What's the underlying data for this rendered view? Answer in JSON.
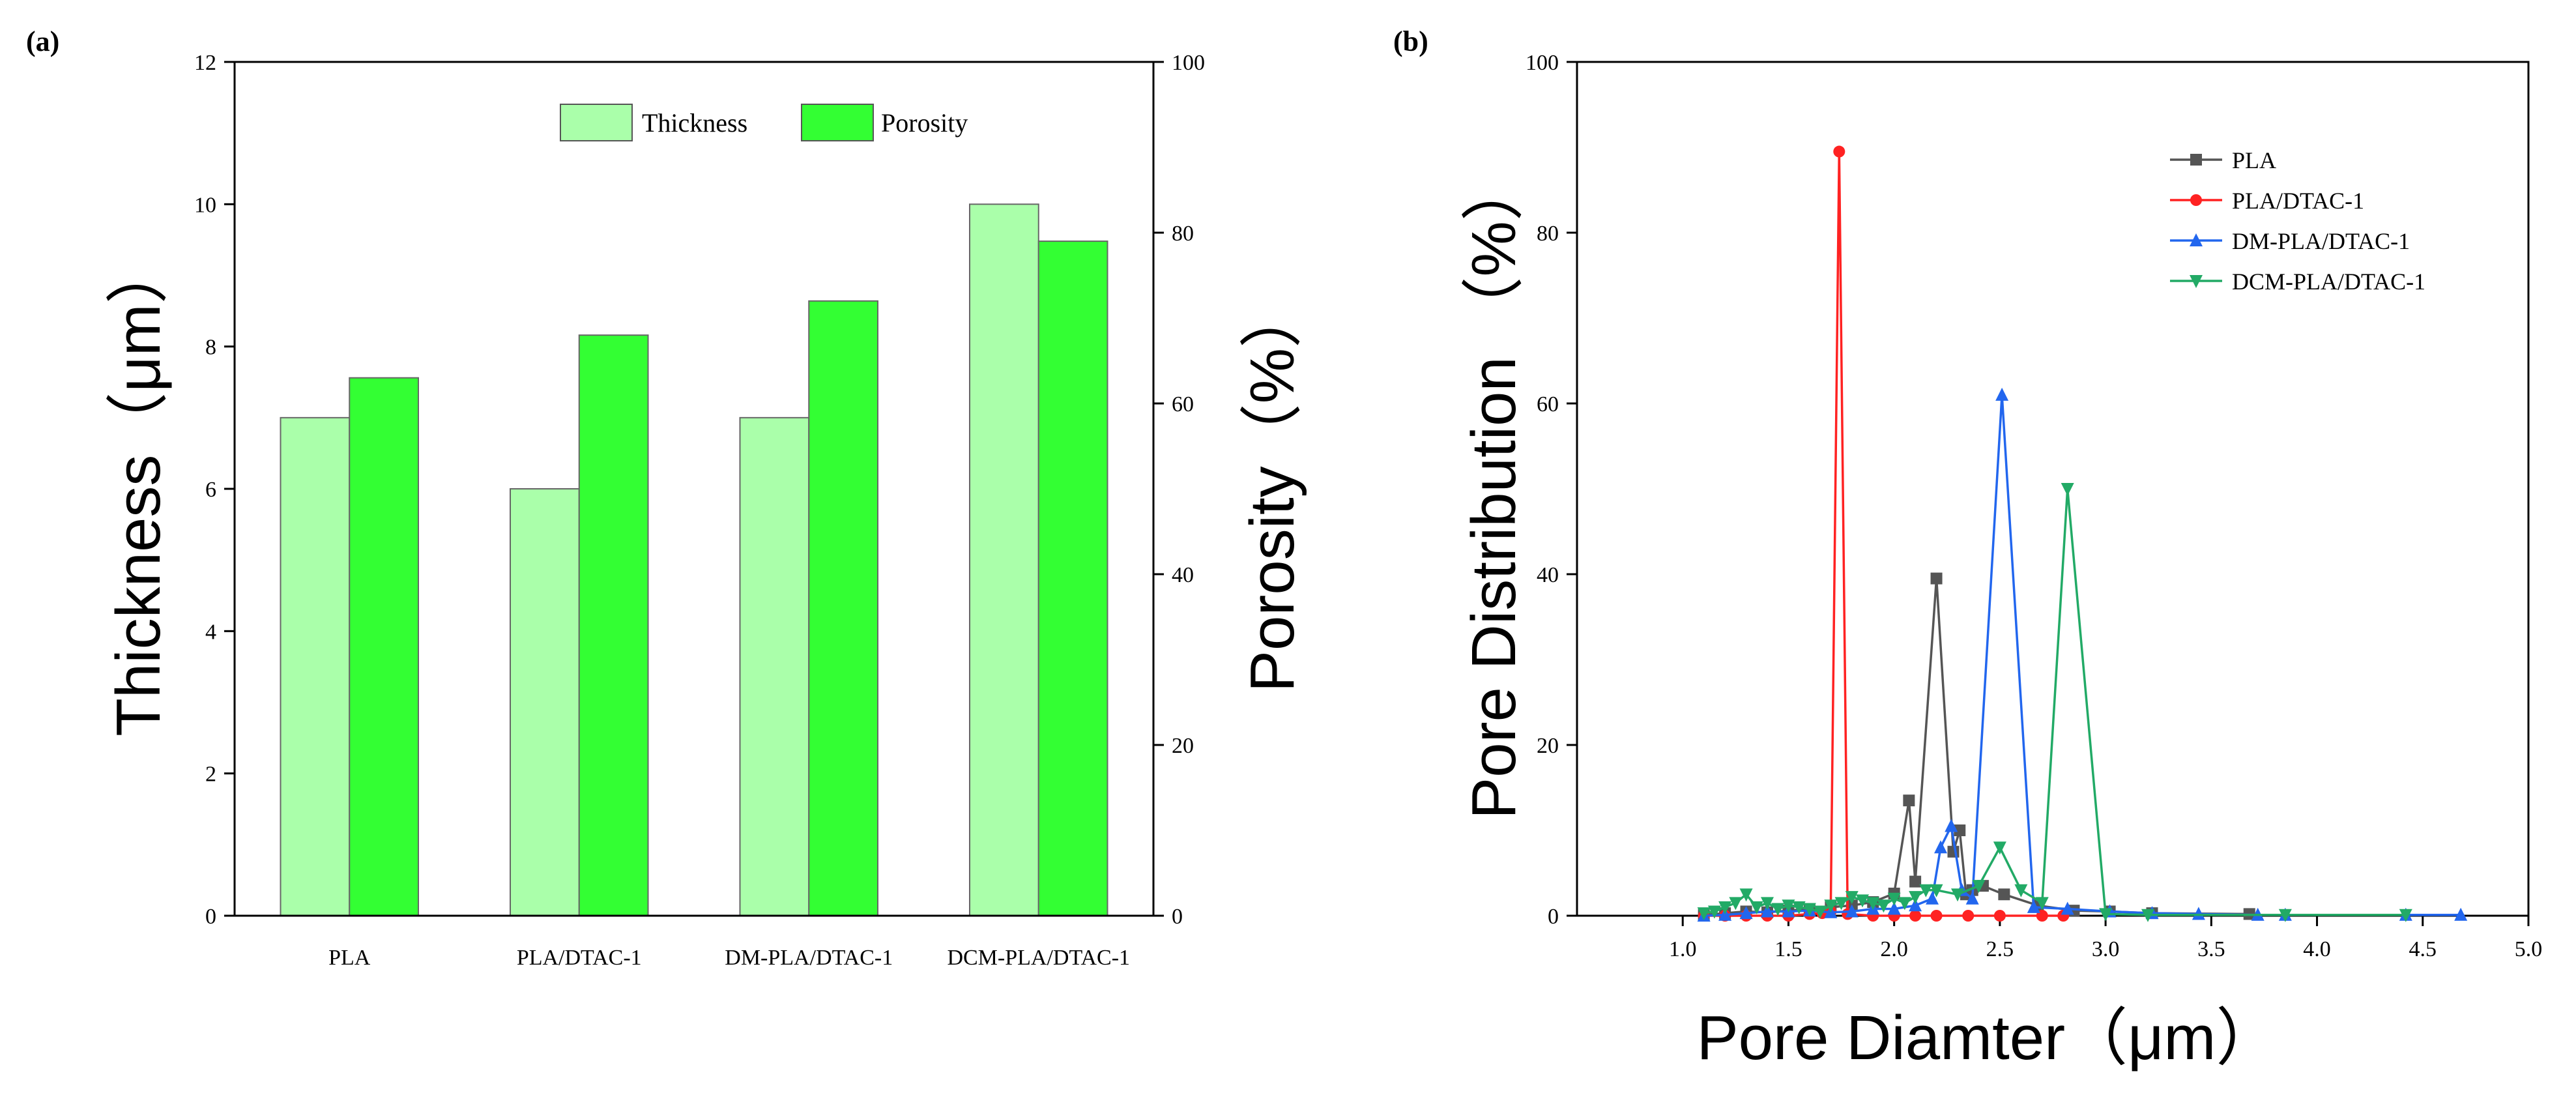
{
  "panel_a_label": "(a)",
  "panel_b_label": "(b)",
  "colors": {
    "thickness": "#aaffaa",
    "porosity": "#33ff33",
    "PLA": "#555555",
    "PLA/DTAC-1": "#ff2222",
    "DM-PLA/DTAC-1": "#2266ee",
    "DCM-PLA/DTAC-1": "#22aa66"
  },
  "chart_data": [
    {
      "type": "bar",
      "title": "(a)",
      "categories": [
        "PLA",
        "PLA/DTAC-1",
        "DM-PLA/DTAC-1",
        "DCM-PLA/DTAC-1"
      ],
      "series": [
        {
          "name": "Thickness",
          "axis": "left",
          "values": [
            7,
            6,
            7,
            10
          ]
        },
        {
          "name": "Porosity",
          "axis": "right",
          "values": [
            63,
            68,
            72,
            79
          ]
        }
      ],
      "ylabel": "Thickness（μm）",
      "ylabel_right": "Porosity（%）",
      "ylim": [
        0,
        12
      ],
      "ylim_right": [
        0,
        100
      ],
      "yticks": [
        "0",
        "2",
        "4",
        "6",
        "8",
        "10",
        "12"
      ],
      "yticks_right": [
        "0",
        "20",
        "40",
        "60",
        "80",
        "100"
      ],
      "legend": [
        "Thickness",
        "Porosity"
      ],
      "legend_position": "top-center"
    },
    {
      "type": "line",
      "title": "(b)",
      "xlabel": "Pore Diamter（μm）",
      "ylabel": "Pore Distribution （%）",
      "xlim": [
        0.5,
        5.0
      ],
      "ylim": [
        0,
        100
      ],
      "xticks": [
        "1.0",
        "1.5",
        "2.0",
        "2.5",
        "3.0",
        "3.5",
        "4.0",
        "4.5",
        "5.0"
      ],
      "yticks": [
        "0",
        "20",
        "40",
        "60",
        "80",
        "100"
      ],
      "legend_position": "top-right",
      "series": [
        {
          "name": "PLA",
          "marker": "square",
          "x": [
            1.1,
            1.2,
            1.3,
            1.4,
            1.5,
            1.6,
            1.7,
            1.8,
            1.9,
            2.0,
            2.07,
            2.1,
            2.2,
            2.28,
            2.31,
            2.34,
            2.37,
            2.42,
            2.52,
            2.68,
            2.85,
            3.02,
            3.22,
            3.68
          ],
          "y": [
            0.1,
            0.3,
            0.5,
            0.4,
            0.6,
            0.8,
            1.0,
            1.2,
            1.6,
            2.6,
            13.5,
            4.0,
            39.5,
            7.5,
            10.0,
            2.5,
            3.0,
            3.5,
            2.5,
            1.2,
            0.6,
            0.5,
            0.3,
            0.2
          ]
        },
        {
          "name": "PLA/DTAC-1",
          "marker": "circle",
          "x": [
            1.1,
            1.2,
            1.3,
            1.4,
            1.5,
            1.6,
            1.66,
            1.7,
            1.74,
            1.78,
            1.9,
            2.0,
            2.1,
            2.2,
            2.35,
            2.5,
            2.7,
            2.8
          ],
          "y": [
            0,
            0,
            0,
            0,
            0,
            0.2,
            0.3,
            0.5,
            89.5,
            0.2,
            0,
            0,
            0,
            0,
            0,
            0,
            0,
            0
          ]
        },
        {
          "name": "DM-PLA/DTAC-1",
          "marker": "triangle-up",
          "x": [
            1.1,
            1.2,
            1.3,
            1.4,
            1.5,
            1.6,
            1.7,
            1.8,
            1.9,
            2.0,
            2.1,
            2.18,
            2.22,
            2.27,
            2.32,
            2.37,
            2.51,
            2.66,
            2.82,
            3.02,
            3.22,
            3.44,
            3.72,
            3.85,
            4.42,
            4.68
          ],
          "y": [
            0,
            0.1,
            0.3,
            0.5,
            0.5,
            0.6,
            0.4,
            0.5,
            0.8,
            0.8,
            1.2,
            2.0,
            8.0,
            10.5,
            3.0,
            2.0,
            61.0,
            1.0,
            0.8,
            0.5,
            0.3,
            0.2,
            0.1,
            0.1,
            0.1,
            0.1
          ]
        },
        {
          "name": "DCM-PLA/DTAC-1",
          "marker": "triangle-down",
          "x": [
            1.1,
            1.15,
            1.2,
            1.25,
            1.3,
            1.35,
            1.4,
            1.45,
            1.5,
            1.55,
            1.6,
            1.65,
            1.7,
            1.75,
            1.8,
            1.85,
            1.9,
            1.95,
            2.0,
            2.05,
            2.1,
            2.15,
            2.2,
            2.3,
            2.4,
            2.5,
            2.6,
            2.7,
            2.82,
            3.0,
            3.2,
            3.85,
            4.42
          ],
          "y": [
            0.3,
            0.5,
            1.0,
            1.5,
            2.5,
            1.0,
            1.5,
            0.8,
            1.2,
            1.0,
            0.8,
            0.5,
            1.2,
            1.5,
            2.2,
            1.8,
            1.5,
            1.2,
            2.0,
            1.5,
            2.2,
            3.0,
            3.0,
            2.5,
            3.5,
            8.0,
            3.0,
            1.5,
            50.0,
            0.2,
            0.1,
            0.1,
            0.1
          ]
        }
      ]
    }
  ]
}
